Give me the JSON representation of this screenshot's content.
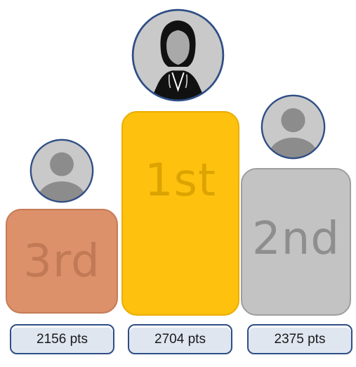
{
  "podiums": {
    "first": {
      "rank": "1st",
      "score": "2704 pts"
    },
    "second": {
      "rank": "2nd",
      "score": "2375 pts"
    },
    "third": {
      "rank": "3rd",
      "score": "2156 pts"
    }
  },
  "colors": {
    "gold": "#fec20e",
    "silver": "#c3c3c3",
    "bronze": "#dd916a",
    "avatar_border": "#2f4e86",
    "score_border": "#2f4e86"
  },
  "icons": {
    "first_avatar": "person-silhouette-portrait-icon",
    "second_avatar": "default-user-icon",
    "third_avatar": "default-user-icon"
  }
}
